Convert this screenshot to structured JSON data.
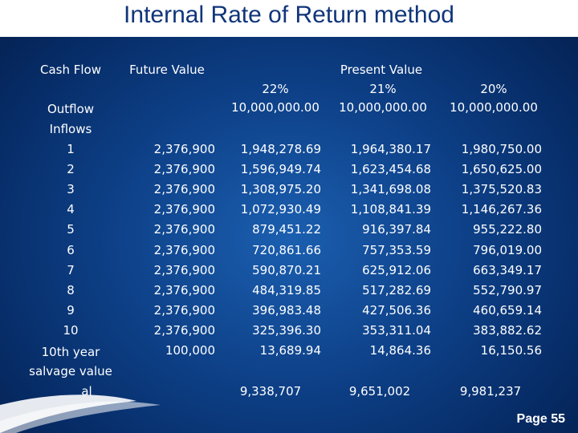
{
  "title": "Internal Rate of Return method",
  "headers": {
    "cash_flow": "Cash Flow",
    "future_value": "Future Value",
    "present_value": "Present Value",
    "rate1": "22%",
    "rate2": "21%",
    "rate3": "20%"
  },
  "outflow": {
    "label": "Outflow",
    "pv22": "10,000,000.00",
    "pv21": "10,000,000.00",
    "pv20": "10,000,000.00"
  },
  "inflows_label": "Inflows",
  "rows": [
    {
      "period": "1",
      "fv": "2,376,900",
      "pv22": "1,948,278.69",
      "pv21": "1,964,380.17",
      "pv20": "1,980,750.00"
    },
    {
      "period": "2",
      "fv": "2,376,900",
      "pv22": "1,596,949.74",
      "pv21": "1,623,454.68",
      "pv20": "1,650,625.00"
    },
    {
      "period": "3",
      "fv": "2,376,900",
      "pv22": "1,308,975.20",
      "pv21": "1,341,698.08",
      "pv20": "1,375,520.83"
    },
    {
      "period": "4",
      "fv": "2,376,900",
      "pv22": "1,072,930.49",
      "pv21": "1,108,841.39",
      "pv20": "1,146,267.36"
    },
    {
      "period": "5",
      "fv": "2,376,900",
      "pv22": "879,451.22",
      "pv21": "916,397.84",
      "pv20": "955,222.80"
    },
    {
      "period": "6",
      "fv": "2,376,900",
      "pv22": "720,861.66",
      "pv21": "757,353.59",
      "pv20": "796,019.00"
    },
    {
      "period": "7",
      "fv": "2,376,900",
      "pv22": "590,870.21",
      "pv21": "625,912.06",
      "pv20": "663,349.17"
    },
    {
      "period": "8",
      "fv": "2,376,900",
      "pv22": "484,319.85",
      "pv21": "517,282.69",
      "pv20": "552,790.97"
    },
    {
      "period": "9",
      "fv": "2,376,900",
      "pv22": "396,983.48",
      "pv21": "427,506.36",
      "pv20": "460,659.14"
    },
    {
      "period": "10",
      "fv": "2,376,900",
      "pv22": "325,396.30",
      "pv21": "353,311.04",
      "pv20": "383,882.62"
    }
  ],
  "salvage": {
    "label_line1": "10th year",
    "label_line2": "salvage value",
    "fv": "100,000",
    "pv22": "13,689.94",
    "pv21": "14,864.36",
    "pv20": "16,150.56"
  },
  "total": {
    "label": "al",
    "pv22": "9,338,707",
    "pv21": "9,651,002",
    "pv20": "9,981,237"
  },
  "page_label": "Page 55"
}
